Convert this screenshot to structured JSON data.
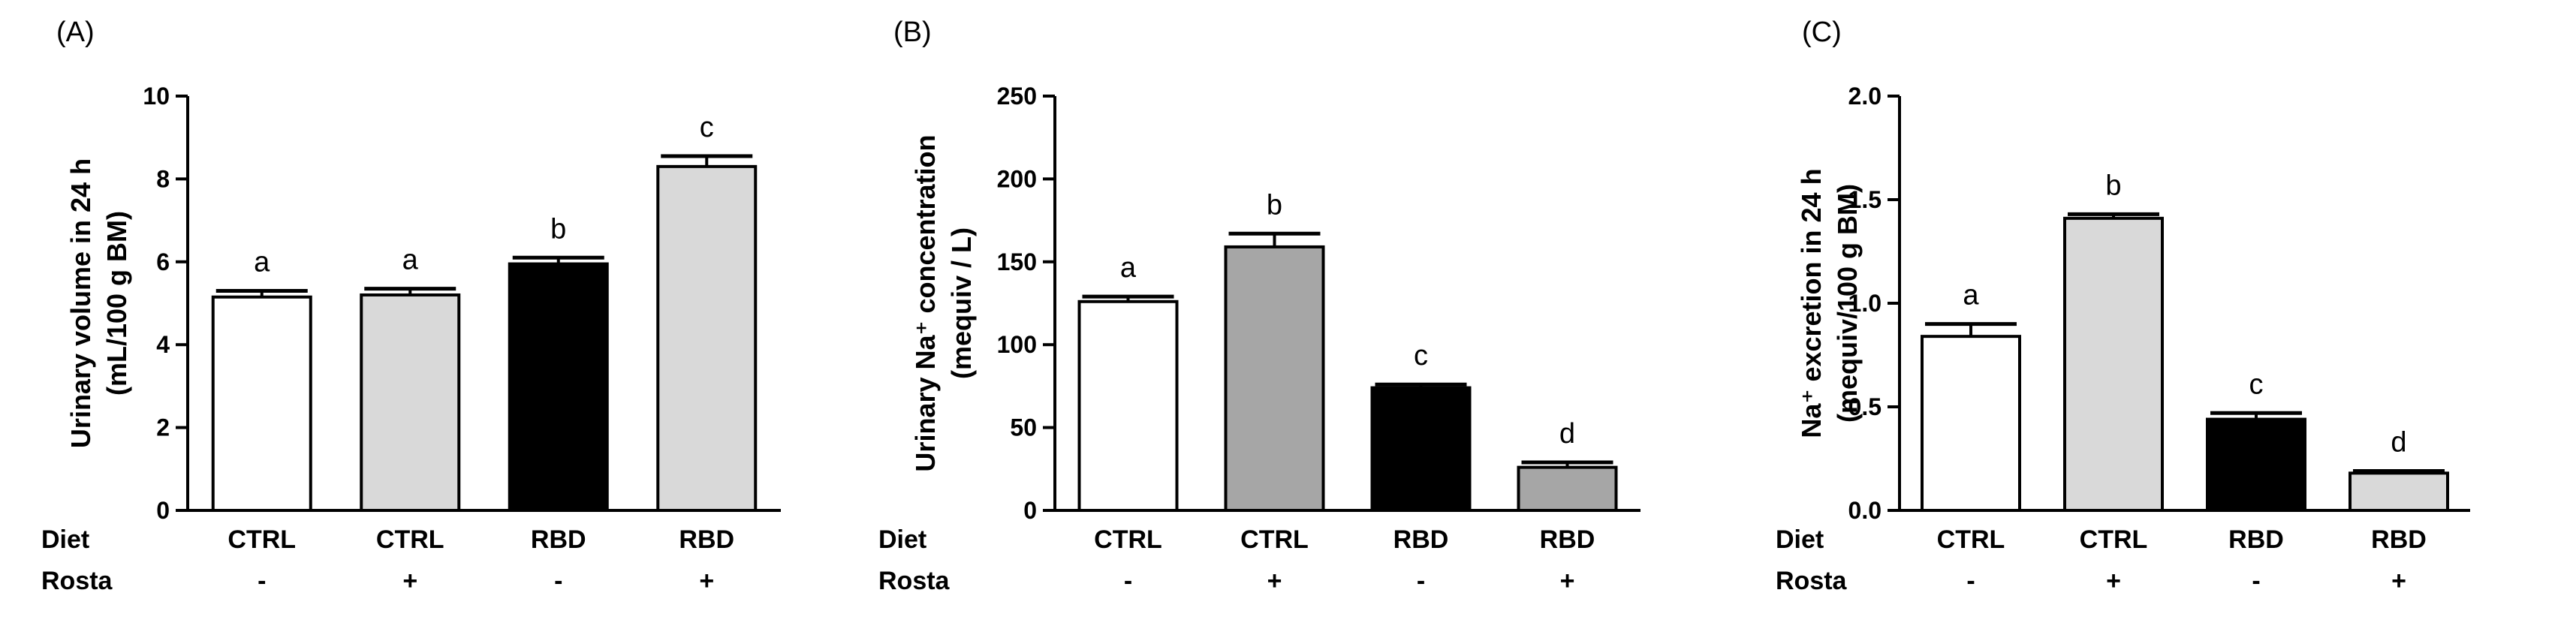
{
  "chart_data": [
    {
      "type": "bar",
      "panel_label": "(A)",
      "ylabel_lines": [
        "Urinary volume in 24 h",
        "(mL/100 g BM)"
      ],
      "ylim": [
        0,
        10
      ],
      "yticks": [
        "0",
        "2",
        "4",
        "6",
        "8",
        "10"
      ],
      "categories": [
        {
          "diet": "CTRL",
          "rosta": "-"
        },
        {
          "diet": "CTRL",
          "rosta": "+"
        },
        {
          "diet": "RBD",
          "rosta": "-"
        },
        {
          "diet": "RBD",
          "rosta": "+"
        }
      ],
      "values": [
        5.15,
        5.2,
        5.95,
        8.3
      ],
      "errors": [
        0.15,
        0.15,
        0.15,
        0.25
      ],
      "significance": [
        "a",
        "a",
        "b",
        "c"
      ],
      "bar_colors": [
        "#ffffff",
        "#d9d9d9",
        "#000000",
        "#d9d9d9"
      ],
      "row_labels": [
        "Diet",
        "Rosta"
      ],
      "grid": false
    },
    {
      "type": "bar",
      "panel_label": "(B)",
      "ylabel_lines": [
        "Urinary Na⁺ concentration",
        "(mequiv / L)"
      ],
      "ylim": [
        0,
        250
      ],
      "yticks": [
        "0",
        "50",
        "100",
        "150",
        "200",
        "250"
      ],
      "categories": [
        {
          "diet": "CTRL",
          "rosta": "-"
        },
        {
          "diet": "CTRL",
          "rosta": "+"
        },
        {
          "diet": "RBD",
          "rosta": "-"
        },
        {
          "diet": "RBD",
          "rosta": "+"
        }
      ],
      "values": [
        126,
        159,
        74,
        26
      ],
      "errors": [
        3,
        8,
        2,
        3
      ],
      "significance": [
        "a",
        "b",
        "c",
        "d"
      ],
      "bar_colors": [
        "#ffffff",
        "#a6a6a6",
        "#000000",
        "#a6a6a6"
      ],
      "row_labels": [
        "Diet",
        "Rosta"
      ],
      "grid": false
    },
    {
      "type": "bar",
      "panel_label": "(C)",
      "ylabel_lines": [
        "Na⁺ excretion in 24 h",
        "(mequiv/100 g BM)"
      ],
      "ylim": [
        0,
        2.0
      ],
      "yticks": [
        "0.0",
        "0.5",
        "1.0",
        "1.5",
        "2.0"
      ],
      "categories": [
        {
          "diet": "CTRL",
          "rosta": "-"
        },
        {
          "diet": "CTRL",
          "rosta": "+"
        },
        {
          "diet": "RBD",
          "rosta": "-"
        },
        {
          "diet": "RBD",
          "rosta": "+"
        }
      ],
      "values": [
        0.84,
        1.41,
        0.44,
        0.18
      ],
      "errors": [
        0.06,
        0.02,
        0.03,
        0.01
      ],
      "significance": [
        "a",
        "b",
        "c",
        "d"
      ],
      "bar_colors": [
        "#ffffff",
        "#d9d9d9",
        "#000000",
        "#d9d9d9"
      ],
      "row_labels": [
        "Diet",
        "Rosta"
      ],
      "grid": false
    }
  ]
}
